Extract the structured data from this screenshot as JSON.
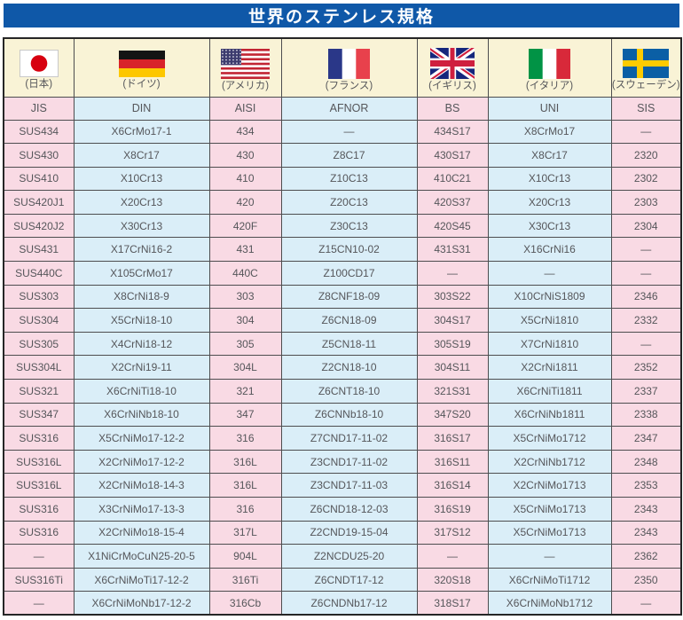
{
  "title": "世界のステンレス規格",
  "columns": [
    {
      "code": "JIS",
      "country": "(日本)",
      "flag": "japan",
      "tone": "pink"
    },
    {
      "code": "DIN",
      "country": "(ドイツ)",
      "flag": "germany",
      "tone": "blue"
    },
    {
      "code": "AISI",
      "country": "(アメリカ)",
      "flag": "usa",
      "tone": "pink"
    },
    {
      "code": "AFNOR",
      "country": "(フランス)",
      "flag": "france",
      "tone": "blue"
    },
    {
      "code": "BS",
      "country": "(イギリス)",
      "flag": "uk",
      "tone": "pink"
    },
    {
      "code": "UNI",
      "country": "(イタリア)",
      "flag": "italy",
      "tone": "blue"
    },
    {
      "code": "SIS",
      "country": "(スウェーデン)",
      "flag": "sweden",
      "tone": "pink"
    }
  ],
  "rows": [
    [
      "SUS434",
      "X6CrMo17-1",
      "434",
      "―",
      "434S17",
      "X8CrMo17",
      "―"
    ],
    [
      "SUS430",
      "X8Cr17",
      "430",
      "Z8C17",
      "430S17",
      "X8Cr17",
      "2320"
    ],
    [
      "SUS410",
      "X10Cr13",
      "410",
      "Z10C13",
      "410C21",
      "X10Cr13",
      "2302"
    ],
    [
      "SUS420J1",
      "X20Cr13",
      "420",
      "Z20C13",
      "420S37",
      "X20Cr13",
      "2303"
    ],
    [
      "SUS420J2",
      "X30Cr13",
      "420F",
      "Z30C13",
      "420S45",
      "X30Cr13",
      "2304"
    ],
    [
      "SUS431",
      "X17CrNi16-2",
      "431",
      "Z15CN10-02",
      "431S31",
      "X16CrNi16",
      "―"
    ],
    [
      "SUS440C",
      "X105CrMo17",
      "440C",
      "Z100CD17",
      "―",
      "―",
      "―"
    ],
    [
      "SUS303",
      "X8CrNi18-9",
      "303",
      "Z8CNF18-09",
      "303S22",
      "X10CrNiS1809",
      "2346"
    ],
    [
      "SUS304",
      "X5CrNi18-10",
      "304",
      "Z6CN18-09",
      "304S17",
      "X5CrNi1810",
      "2332"
    ],
    [
      "SUS305",
      "X4CrNi18-12",
      "305",
      "Z5CN18-11",
      "305S19",
      "X7CrNi1810",
      "―"
    ],
    [
      "SUS304L",
      "X2CrNi19-11",
      "304L",
      "Z2CN18-10",
      "304S11",
      "X2CrNi1811",
      "2352"
    ],
    [
      "SUS321",
      "X6CrNiTi18-10",
      "321",
      "Z6CNT18-10",
      "321S31",
      "X6CrNiTi1811",
      "2337"
    ],
    [
      "SUS347",
      "X6CrNiNb18-10",
      "347",
      "Z6CNNb18-10",
      "347S20",
      "X6CrNiNb1811",
      "2338"
    ],
    [
      "SUS316",
      "X5CrNiMo17-12-2",
      "316",
      "Z7CND17-11-02",
      "316S17",
      "X5CrNiMo1712",
      "2347"
    ],
    [
      "SUS316L",
      "X2CrNiMo17-12-2",
      "316L",
      "Z3CND17-11-02",
      "316S11",
      "X2CrNiNb1712",
      "2348"
    ],
    [
      "SUS316L",
      "X2CrNiMo18-14-3",
      "316L",
      "Z3CND17-11-03",
      "316S14",
      "X2CrNiMo1713",
      "2353"
    ],
    [
      "SUS316",
      "X3CrNiMo17-13-3",
      "316",
      "Z6CND18-12-03",
      "316S19",
      "X5CrNiMo1713",
      "2343"
    ],
    [
      "SUS316",
      "X2CrNiMo18-15-4",
      "317L",
      "Z2CND19-15-04",
      "317S12",
      "X5CrNiMo1713",
      "2343"
    ],
    [
      "―",
      "X1NiCrMoCuN25-20-5",
      "904L",
      "Z2NCDU25-20",
      "―",
      "―",
      "2362"
    ],
    [
      "SUS316Ti",
      "X6CrNiMoTi17-12-2",
      "316Ti",
      "Z6CNDT17-12",
      "320S18",
      "X6CrNiMoTi1712",
      "2350"
    ],
    [
      "―",
      "X6CrNiMoNb17-12-2",
      "316Cb",
      "Z6CNDNb17-12",
      "318S17",
      "X6CrNiMoNb1712",
      "―"
    ]
  ],
  "colors": {
    "title_bg": "#0f58a8",
    "title_text": "#ffffff",
    "column_pink": "#f9dae4",
    "column_blue": "#daeef8",
    "flag_row_cream": "#f9f3d6",
    "cell_text": "#55565a",
    "border": "#4d4d4f"
  }
}
